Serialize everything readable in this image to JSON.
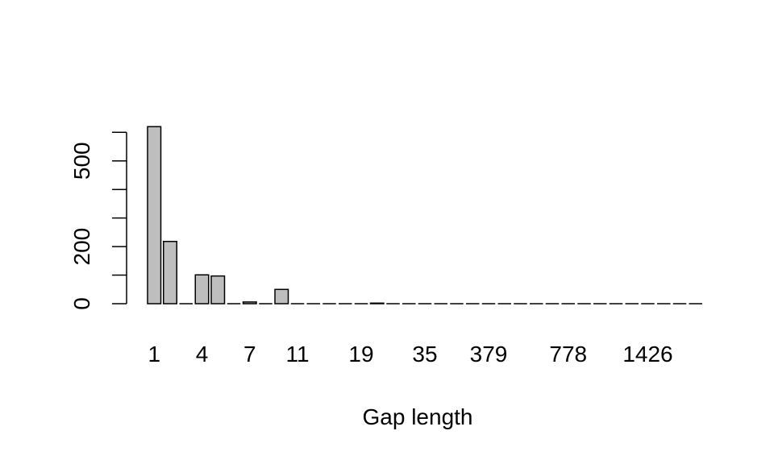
{
  "chart_data": {
    "type": "bar",
    "xlabel": "Gap length",
    "ylabel": "",
    "title": "",
    "ylim": [
      0,
      610
    ],
    "yticks": [
      0,
      100,
      200,
      300,
      400,
      500,
      600
    ],
    "ytick_labels": [
      "0",
      "200",
      "500"
    ],
    "ytick_label_values": [
      0,
      200,
      500
    ],
    "bar_fill": "#bebebe",
    "bar_stroke": "#000000",
    "xtick_labels": [
      "1",
      "4",
      "7",
      "11",
      "19",
      "35",
      "379",
      "778",
      "1426"
    ],
    "xtick_label_indices": [
      0,
      3,
      6,
      9,
      13,
      17,
      21,
      26,
      31
    ],
    "values": [
      620,
      218,
      0,
      101,
      97,
      0,
      6,
      0,
      50,
      0,
      0,
      0,
      0,
      0,
      2,
      0,
      0,
      1,
      1,
      0,
      0,
      1,
      0,
      1,
      0,
      0,
      1,
      0,
      0,
      0,
      0,
      1,
      1,
      0,
      0
    ]
  }
}
